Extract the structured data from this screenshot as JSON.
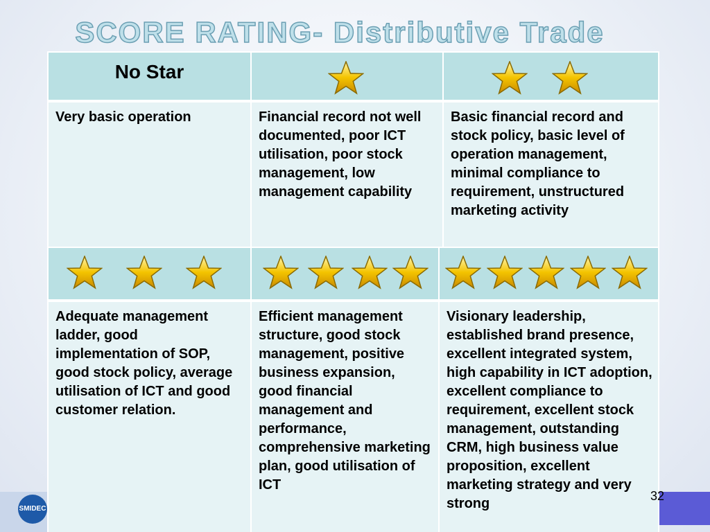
{
  "title": "SCORE RATING- Distributive Trade",
  "table": {
    "header": [
      "No Star"
    ],
    "rows": [
      [
        "Very basic operation",
        "Financial record not well documented, poor ICT utilisation, poor stock management, low management capability",
        "Basic financial record and stock policy, basic level of operation management, minimal compliance to requirement, unstructured marketing activity"
      ],
      [
        "Adequate management ladder, good implementation of SOP, good stock policy, average utilisation of ICT and good customer relation.",
        "Efficient management structure, good stock management, positive business expansion, good financial management and performance, comprehensive marketing plan, good utilisation of ICT",
        "Visionary leadership, established brand presence, excellent integrated system, high capability in ICT adoption, excellent compliance to requirement, excellent stock management, outstanding CRM, high business value proposition, excellent marketing strategy and very strong"
      ]
    ]
  },
  "logo": "SMIDEC",
  "page_number": "32"
}
